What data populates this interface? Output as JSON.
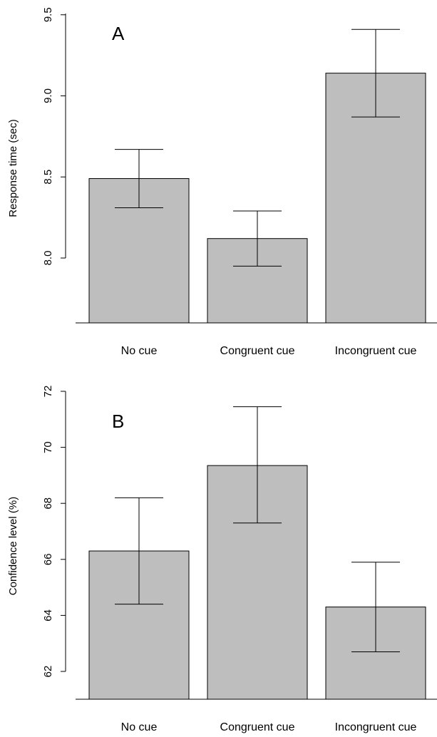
{
  "chart_data": [
    {
      "type": "bar",
      "panel_label": "A",
      "ylabel": "Response time (sec)",
      "categories": [
        "No cue",
        "Congruent cue",
        "Incongruent cue"
      ],
      "values": [
        8.49,
        8.12,
        9.14
      ],
      "error_low": [
        8.31,
        7.95,
        8.87
      ],
      "error_high": [
        8.67,
        8.29,
        9.41
      ],
      "ylim": [
        7.6,
        9.5
      ],
      "yticks": [
        "8.0",
        "8.5",
        "9.0",
        "9.5"
      ],
      "bar_color": "#bebebe",
      "grid": false
    },
    {
      "type": "bar",
      "panel_label": "B",
      "ylabel": "Confidence level (%)",
      "categories": [
        "No cue",
        "Congruent cue",
        "Incongruent cue"
      ],
      "values": [
        66.3,
        69.35,
        64.3
      ],
      "error_low": [
        64.4,
        67.3,
        62.7
      ],
      "error_high": [
        68.2,
        71.45,
        65.9
      ],
      "ylim": [
        61.0,
        72.0
      ],
      "yticks": [
        "62",
        "64",
        "66",
        "68",
        "70",
        "72"
      ],
      "bar_color": "#bebebe",
      "grid": false
    }
  ]
}
